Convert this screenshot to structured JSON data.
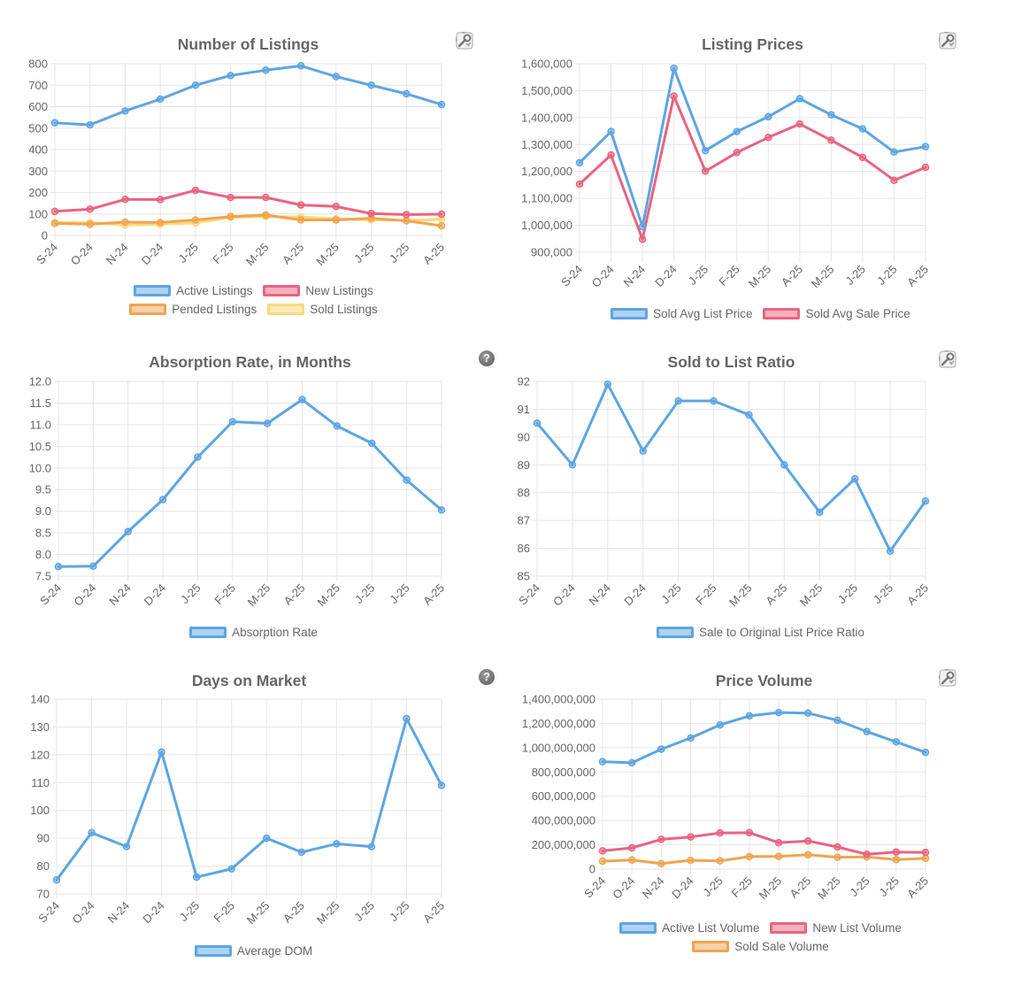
{
  "colors": {
    "blue": "#5da5e3",
    "red": "#e9647f",
    "orange": "#f0a451",
    "yellow": "#f9da78",
    "grid": "#e6e6e6"
  },
  "months": [
    "S-24",
    "O-24",
    "N-24",
    "D-24",
    "J-25",
    "F-25",
    "M-25",
    "A-25",
    "M-25",
    "J-25",
    "J-25",
    "A-25"
  ],
  "chart_data": [
    {
      "type": "line",
      "title": "Number of Listings",
      "categories": [
        "S-24",
        "O-24",
        "N-24",
        "D-24",
        "J-25",
        "F-25",
        "M-25",
        "A-25",
        "M-25",
        "J-25",
        "J-25",
        "A-25"
      ],
      "ylim": [
        0,
        800
      ],
      "yticks": [
        0,
        100,
        200,
        300,
        400,
        500,
        600,
        700,
        800
      ],
      "ytick_labels": [
        "0",
        "100",
        "200",
        "300",
        "400",
        "500",
        "600",
        "700",
        "800"
      ],
      "icons": [
        "help",
        "tools"
      ],
      "series": [
        {
          "name": "Active Listings",
          "color": "blue",
          "values": [
            525,
            515,
            580,
            635,
            700,
            745,
            770,
            790,
            740,
            700,
            660,
            610
          ]
        },
        {
          "name": "New Listings",
          "color": "red",
          "values": [
            112,
            122,
            168,
            167,
            210,
            177,
            177,
            142,
            135,
            102,
            97,
            99
          ]
        },
        {
          "name": "Pended Listings",
          "color": "orange",
          "values": [
            56,
            52,
            62,
            60,
            72,
            88,
            95,
            72,
            72,
            80,
            68,
            45
          ]
        },
        {
          "name": "Sold Listings",
          "color": "yellow",
          "values": [
            60,
            60,
            48,
            52,
            58,
            84,
            88,
            86,
            78,
            72,
            70,
            75
          ]
        }
      ]
    },
    {
      "type": "line",
      "title": "Listing Prices",
      "categories": [
        "S-24",
        "O-24",
        "N-24",
        "D-24",
        "J-25",
        "F-25",
        "M-25",
        "A-25",
        "M-25",
        "J-25",
        "J-25",
        "A-25"
      ],
      "ylim": [
        880000,
        1600000
      ],
      "yticks": [
        900000,
        1000000,
        1100000,
        1200000,
        1300000,
        1400000,
        1500000,
        1600000
      ],
      "ytick_labels": [
        "900,000",
        "1,000,000",
        "1,100,000",
        "1,200,000",
        "1,300,000",
        "1,400,000",
        "1,500,000",
        "1,600,000"
      ],
      "icons": [
        "help",
        "tools"
      ],
      "series": [
        {
          "name": "Sold Avg List Price",
          "color": "blue",
          "values": [
            1232000,
            1348000,
            995000,
            1583000,
            1277000,
            1348000,
            1403000,
            1470000,
            1410000,
            1358000,
            1272000,
            1292000
          ]
        },
        {
          "name": "Sold Avg Sale Price",
          "color": "red",
          "values": [
            1153000,
            1261000,
            948000,
            1480000,
            1201000,
            1270000,
            1326000,
            1376000,
            1316000,
            1252000,
            1167000,
            1215000
          ]
        }
      ]
    },
    {
      "type": "line",
      "title": "Absorption Rate, in Months",
      "categories": [
        "S-24",
        "O-24",
        "N-24",
        "D-24",
        "J-25",
        "F-25",
        "M-25",
        "A-25",
        "M-25",
        "J-25",
        "J-25",
        "A-25"
      ],
      "ylim": [
        7.5,
        12.0
      ],
      "yticks": [
        7.5,
        8.0,
        8.5,
        9.0,
        9.5,
        10.0,
        10.5,
        11.0,
        11.5,
        12.0
      ],
      "ytick_labels": [
        "7.5",
        "8.0",
        "8.5",
        "9.0",
        "9.5",
        "10.0",
        "10.5",
        "11.0",
        "11.5",
        "12.0"
      ],
      "icons": [
        "help"
      ],
      "series": [
        {
          "name": "Absorption Rate",
          "color": "blue",
          "values": [
            7.72,
            7.73,
            8.53,
            9.27,
            10.25,
            11.07,
            11.03,
            11.58,
            10.97,
            10.57,
            9.72,
            9.03
          ]
        }
      ]
    },
    {
      "type": "line",
      "title": "Sold to List Ratio",
      "categories": [
        "S-24",
        "O-24",
        "N-24",
        "D-24",
        "J-25",
        "F-25",
        "M-25",
        "A-25",
        "M-25",
        "J-25",
        "J-25",
        "A-25"
      ],
      "ylim": [
        85,
        92
      ],
      "yticks": [
        85,
        86,
        87,
        88,
        89,
        90,
        91,
        92
      ],
      "ytick_labels": [
        "85",
        "86",
        "87",
        "88",
        "89",
        "90",
        "91",
        "92"
      ],
      "icons": [
        "help",
        "tools"
      ],
      "series": [
        {
          "name": "Sale to Original List Price Ratio",
          "color": "blue",
          "values": [
            90.5,
            89.0,
            91.9,
            89.5,
            91.3,
            91.3,
            90.8,
            89.0,
            87.3,
            88.5,
            85.9,
            87.7
          ]
        }
      ]
    },
    {
      "type": "line",
      "title": "Days on Market",
      "categories": [
        "S-24",
        "O-24",
        "N-24",
        "D-24",
        "J-25",
        "F-25",
        "M-25",
        "A-25",
        "M-25",
        "J-25",
        "J-25",
        "A-25"
      ],
      "ylim": [
        70,
        140
      ],
      "yticks": [
        70,
        80,
        90,
        100,
        110,
        120,
        130,
        140
      ],
      "ytick_labels": [
        "70",
        "80",
        "90",
        "100",
        "110",
        "120",
        "130",
        "140"
      ],
      "icons": [
        "help"
      ],
      "series": [
        {
          "name": "Average DOM",
          "color": "blue",
          "values": [
            75,
            92,
            87,
            121,
            76,
            79,
            90,
            85,
            88,
            87,
            133,
            109
          ]
        }
      ]
    },
    {
      "type": "line",
      "title": "Price Volume",
      "categories": [
        "S-24",
        "O-24",
        "N-24",
        "D-24",
        "J-25",
        "F-25",
        "M-25",
        "A-25",
        "M-25",
        "J-25",
        "J-25",
        "A-25"
      ],
      "ylim": [
        0,
        1400000000
      ],
      "yticks": [
        0,
        200000000,
        400000000,
        600000000,
        800000000,
        1000000000,
        1200000000,
        1400000000
      ],
      "ytick_labels": [
        "0",
        "200,000,000",
        "400,000,000",
        "600,000,000",
        "800,000,000",
        "1,000,000,000",
        "1,200,000,000",
        "1,400,000,000"
      ],
      "icons": [
        "help",
        "tools"
      ],
      "series": [
        {
          "name": "Active List Volume",
          "color": "blue",
          "values": [
            885000000,
            876000000,
            988000000,
            1080000000,
            1188000000,
            1262000000,
            1290000000,
            1285000000,
            1226000000,
            1133000000,
            1048000000,
            962000000
          ]
        },
        {
          "name": "New List Volume",
          "color": "red",
          "values": [
            150000000,
            175000000,
            245000000,
            265000000,
            298000000,
            300000000,
            218000000,
            232000000,
            182000000,
            122000000,
            140000000,
            138000000
          ]
        },
        {
          "name": "Sold Sale Volume",
          "color": "orange",
          "values": [
            65000000,
            75000000,
            45000000,
            72000000,
            68000000,
            103000000,
            105000000,
            118000000,
            98000000,
            100000000,
            78000000,
            88000000
          ]
        }
      ]
    }
  ]
}
